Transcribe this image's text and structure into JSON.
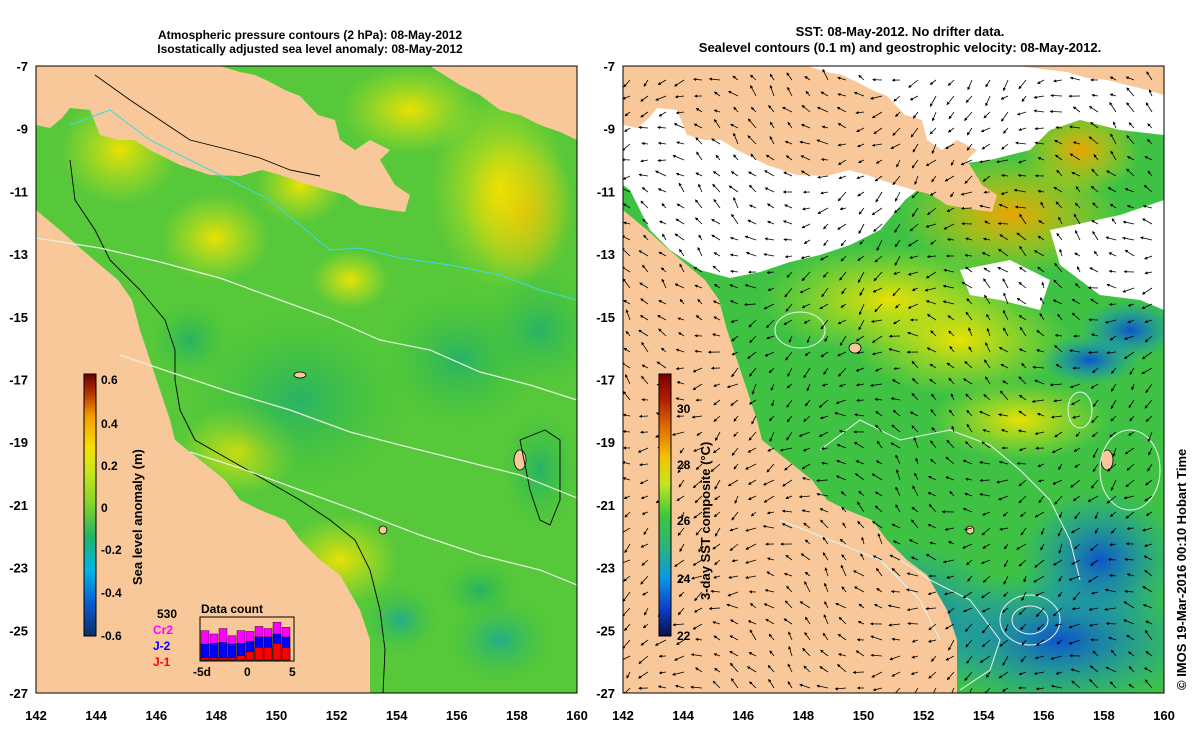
{
  "left_panel": {
    "title_line1": "Atmospheric pressure contours (2 hPa): 08-May-2012",
    "title_line2": "Isostatically adjusted sea level anomaly: 08-May-2012",
    "colorbar": {
      "label": "Sea level anomaly (m)",
      "ticks": [
        "0.6",
        "0.4",
        "0.2",
        "0",
        "-0.2",
        "-0.4",
        "-0.6"
      ]
    },
    "data_count": {
      "title": "Data count",
      "total": "530",
      "satellites": [
        {
          "name": "Cr2",
          "color": "#ff00ff"
        },
        {
          "name": "J-2",
          "color": "#0000ff"
        },
        {
          "name": "J-1",
          "color": "#ff0000"
        }
      ],
      "x_ticks": [
        "-5d",
        "0",
        "5"
      ],
      "bars": [
        {
          "j1": 0.05,
          "j2": 0.38,
          "cr2": 0.7
        },
        {
          "j1": 0.05,
          "j2": 0.4,
          "cr2": 0.62
        },
        {
          "j1": 0.05,
          "j2": 0.42,
          "cr2": 0.75
        },
        {
          "j1": 0.05,
          "j2": 0.38,
          "cr2": 0.58
        },
        {
          "j1": 0.1,
          "j2": 0.4,
          "cr2": 0.7
        },
        {
          "j1": 0.2,
          "j2": 0.45,
          "cr2": 0.68
        },
        {
          "j1": 0.3,
          "j2": 0.55,
          "cr2": 0.8
        },
        {
          "j1": 0.3,
          "j2": 0.55,
          "cr2": 0.75
        },
        {
          "j1": 0.4,
          "j2": 0.62,
          "cr2": 0.9
        },
        {
          "j1": 0.3,
          "j2": 0.55,
          "cr2": 0.78
        }
      ]
    }
  },
  "right_panel": {
    "title_line1": "SST: 08-May-2012. No drifter data.",
    "title_line2": "Sealevel contours (0.1 m) and geostrophic velocity: 08-May-2012.",
    "colorbar": {
      "label": "3-day SST composite (°C)",
      "ticks": [
        "30",
        "28",
        "26",
        "24",
        "22"
      ]
    }
  },
  "axes": {
    "lat_ticks": [
      "-7",
      "-9",
      "-11",
      "-13",
      "-15",
      "-17",
      "-19",
      "-21",
      "-23",
      "-25",
      "-27"
    ],
    "lon_ticks": [
      "142",
      "144",
      "146",
      "148",
      "150",
      "152",
      "154",
      "156",
      "158",
      "160"
    ]
  },
  "credit": "© IMOS 19-Mar-2016 00:10 Hobart Time",
  "colors": {
    "land": "#f9c89a",
    "sla_palette": [
      "#08306b",
      "#0a5bd0",
      "#00b4e6",
      "#1fb36b",
      "#7fd42a",
      "#f5e100",
      "#f59b00",
      "#b03000",
      "#6a0000"
    ],
    "sst_palette": [
      "#08104a",
      "#0b3cc8",
      "#0a96e6",
      "#2bb37a",
      "#3ec63c",
      "#c5e51f",
      "#f4c300",
      "#e06a00",
      "#7a0000"
    ]
  }
}
